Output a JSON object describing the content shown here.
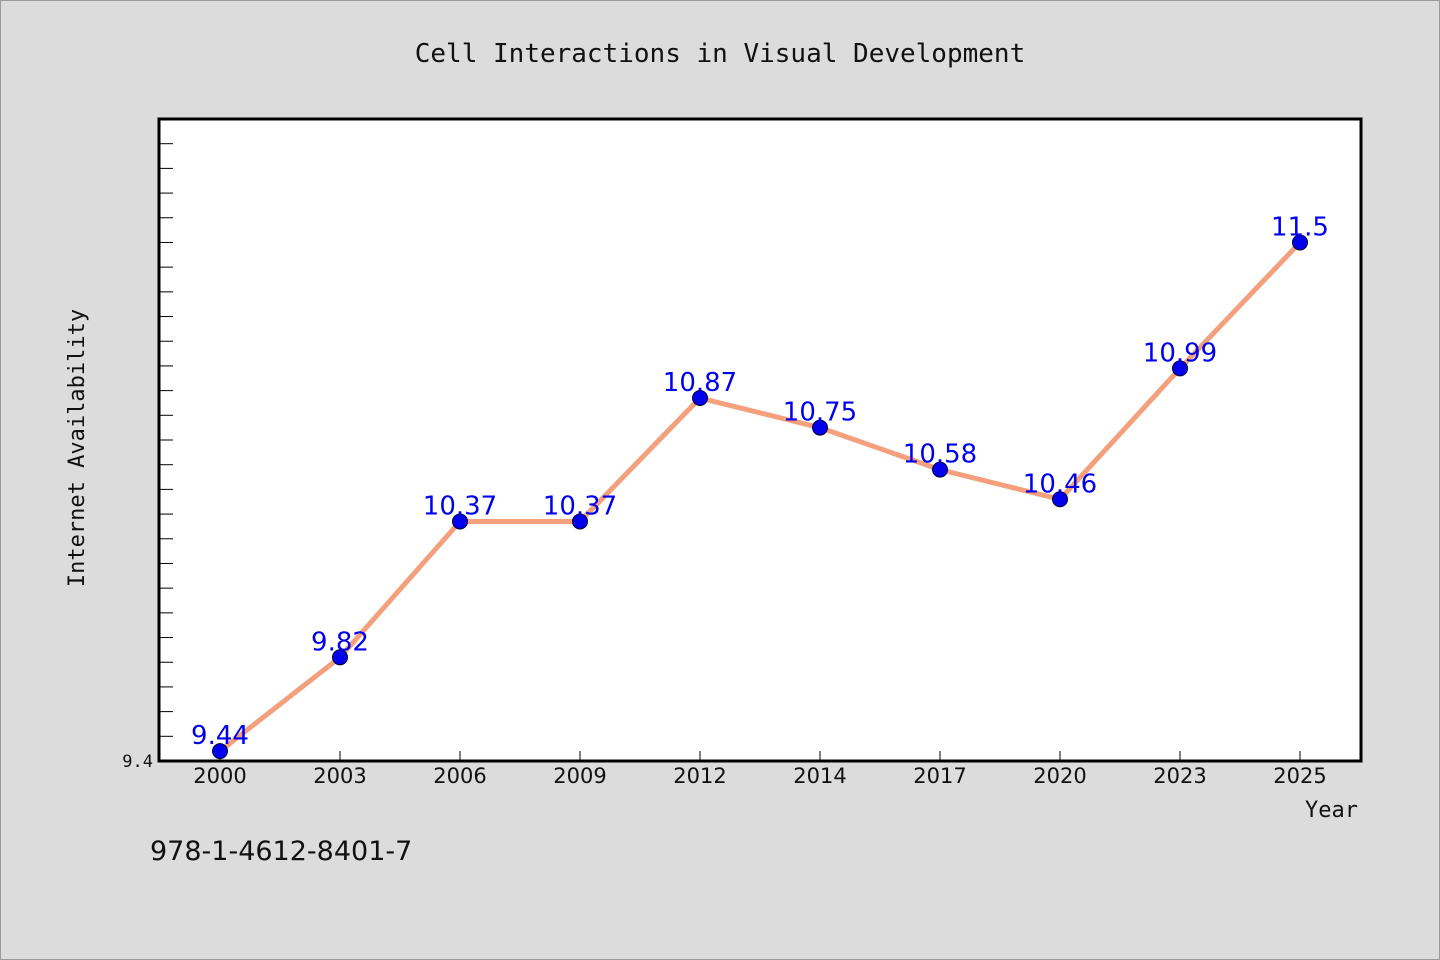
{
  "chart_data": {
    "type": "line",
    "title": "Cell Interactions in Visual Development",
    "xlabel": "Year",
    "ylabel": "Internet Availability",
    "categories": [
      "2000",
      "2003",
      "2006",
      "2009",
      "2012",
      "2014",
      "2017",
      "2020",
      "2023",
      "2025"
    ],
    "series": [
      {
        "values": [
          9.44,
          9.82,
          10.37,
          10.37,
          10.87,
          10.75,
          10.58,
          10.46,
          10.99,
          11.5
        ],
        "data_labels": [
          "9.44",
          "9.82",
          "10.37",
          "10.37",
          "10.87",
          "10.75",
          "10.58",
          "10.46",
          "10.99",
          "11.5"
        ]
      }
    ],
    "ylim": [
      9.4,
      12.0
    ],
    "ytick_labels": [
      "9.4"
    ],
    "grid": false,
    "line_color": "#f4a07c",
    "marker_color": "#0000ee",
    "label_color": "#0000ee"
  },
  "footnote": "978-1-4612-8401-7"
}
